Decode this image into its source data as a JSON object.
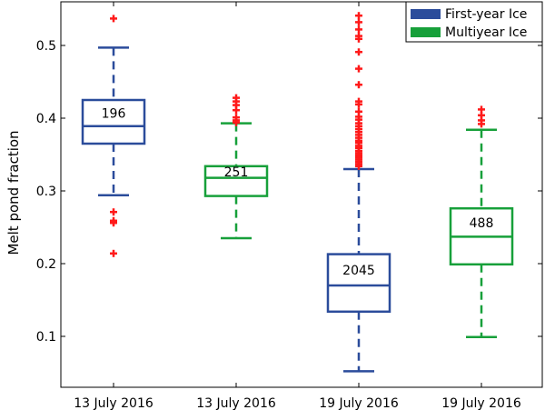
{
  "chart_data": {
    "type": "box",
    "ylabel": "Melt pond fraction",
    "xlabel": "",
    "ylim": [
      0.03,
      0.56
    ],
    "yticks": [
      0.1,
      0.2,
      0.3,
      0.4,
      0.5
    ],
    "ytick_labels": [
      "0.1",
      "0.2",
      "0.3",
      "0.4",
      "0.5"
    ],
    "legend": {
      "placement": "top-right",
      "entries": [
        {
          "name": "First-year Ice",
          "color": "#2B4C9B"
        },
        {
          "name": "Multiyear Ice",
          "color": "#17A03A"
        }
      ]
    },
    "categories": [
      "13 July 2016",
      "13 July 2016",
      "19 July 2016",
      "19 July 2016"
    ],
    "boxes": [
      {
        "category": "13 July 2016",
        "series": "First-year Ice",
        "color": "#2B4C9B",
        "count": "196",
        "whisker_low": 0.294,
        "q1": 0.365,
        "median": 0.389,
        "q3": 0.425,
        "whisker_high": 0.497,
        "outliers": [
          0.537,
          0.271,
          0.259,
          0.256,
          0.214
        ]
      },
      {
        "category": "13 July 2016",
        "series": "Multiyear Ice",
        "color": "#17A03A",
        "count": "251",
        "whisker_low": 0.235,
        "q1": 0.293,
        "median": 0.318,
        "q3": 0.334,
        "whisker_high": 0.393,
        "outliers": [
          0.428,
          0.423,
          0.418,
          0.411,
          0.401,
          0.397,
          0.394
        ]
      },
      {
        "category": "19 July 2016",
        "series": "First-year Ice",
        "color": "#2B4C9B",
        "count": "2045",
        "whisker_low": 0.052,
        "q1": 0.134,
        "median": 0.17,
        "q3": 0.213,
        "whisker_high": 0.33,
        "outliers": [
          0.541,
          0.532,
          0.522,
          0.513,
          0.509,
          0.491,
          0.468,
          0.446,
          0.423,
          0.419,
          0.409,
          0.402,
          0.398,
          0.393,
          0.389,
          0.385,
          0.381,
          0.377,
          0.373,
          0.369,
          0.366,
          0.362,
          0.359,
          0.355,
          0.352,
          0.349,
          0.346,
          0.343,
          0.34,
          0.337,
          0.334
        ]
      },
      {
        "category": "19 July 2016",
        "series": "Multiyear Ice",
        "color": "#17A03A",
        "count": "488",
        "whisker_low": 0.099,
        "q1": 0.199,
        "median": 0.237,
        "q3": 0.276,
        "whisker_high": 0.384,
        "outliers": [
          0.412,
          0.404,
          0.397,
          0.392
        ]
      }
    ]
  }
}
